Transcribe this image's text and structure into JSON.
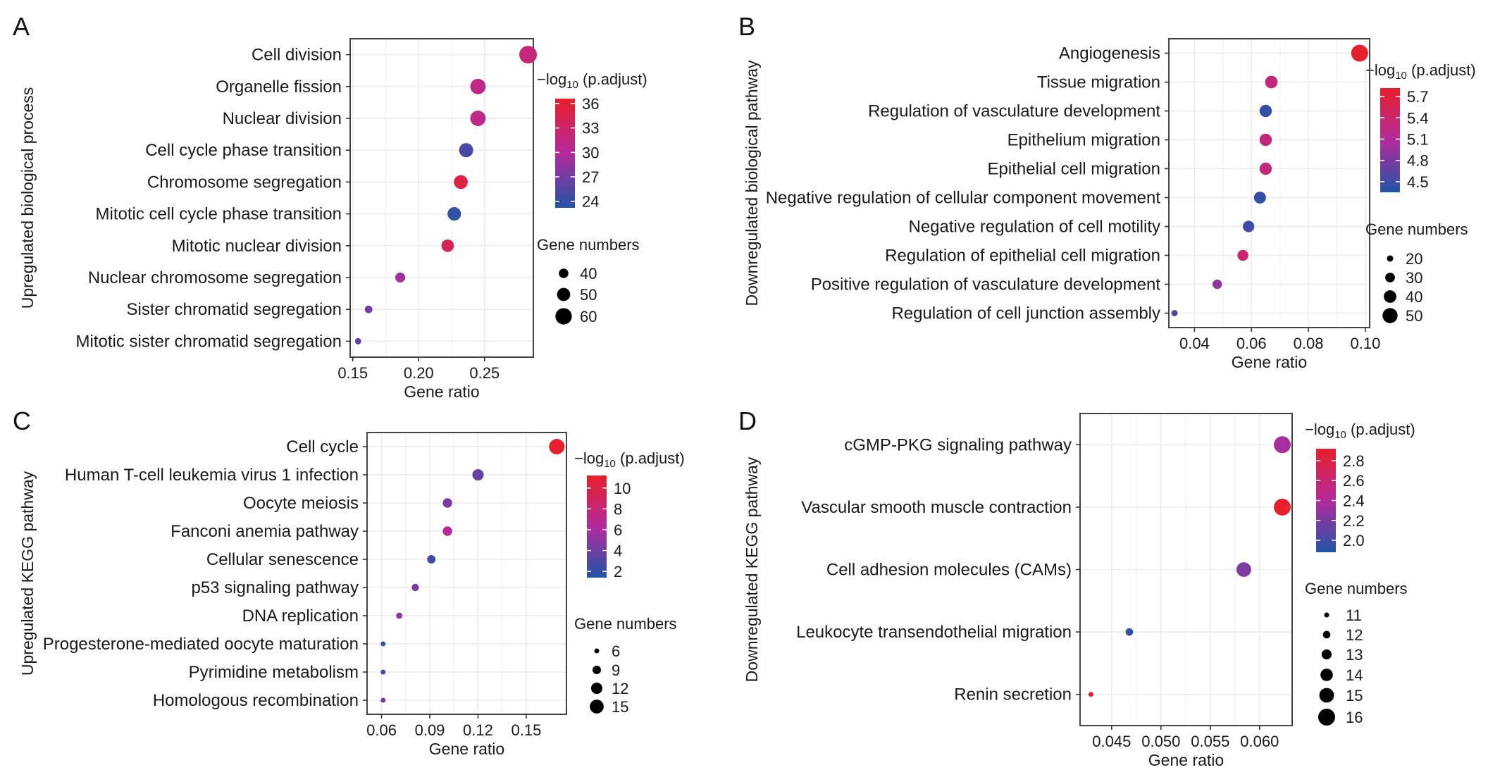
{
  "chart_data": [
    {
      "panel": "A",
      "type": "scatter",
      "ylabel": "Upregulated biological process",
      "xlabel": "Gene ratio",
      "xlim": [
        0.148,
        0.287
      ],
      "xticks": [
        0.15,
        0.2,
        0.25
      ],
      "xtick_labels": [
        "0.15",
        "0.20",
        "0.25"
      ],
      "categories": [
        "Cell division",
        "Organelle fission",
        "Nuclear division",
        "Cell cycle phase transition",
        "Chromosome segregation",
        "Mitotic cell cycle phase transition",
        "Mitotic nuclear division",
        "Nuclear chromosome segregation",
        "Sister chromatid segregation",
        "Mitotic sister chromatid segregation"
      ],
      "x": [
        0.283,
        0.245,
        0.245,
        0.236,
        0.232,
        0.227,
        0.222,
        0.186,
        0.162,
        0.154
      ],
      "color_value": [
        32,
        31,
        31,
        25,
        35,
        24,
        34,
        29,
        27,
        26
      ],
      "size_value": [
        64,
        57,
        57,
        53,
        52,
        51,
        48,
        41,
        35,
        32
      ],
      "color_legend": {
        "title_prefix": "−log",
        "title_sub": "10",
        "title_suffix": " (p.adjust)",
        "ticks": [
          24,
          27,
          30,
          33,
          36
        ],
        "tick_labels": [
          "24",
          "27",
          "30",
          "33",
          "36"
        ],
        "range": [
          23.2,
          36.6
        ]
      },
      "size_legend": {
        "title": "Gene numbers",
        "values": [
          40,
          50,
          60
        ],
        "labels": [
          "40",
          "50",
          "60"
        ]
      }
    },
    {
      "panel": "B",
      "type": "scatter",
      "ylabel": "Downregulated biological pathway",
      "xlabel": "Gene ratio",
      "xlim": [
        0.031,
        0.1015
      ],
      "xticks": [
        0.04,
        0.06,
        0.08,
        0.1
      ],
      "xtick_labels": [
        "0.04",
        "0.06",
        "0.08",
        "0.10"
      ],
      "categories": [
        "Angiogenesis",
        "Tissue migration",
        "Regulation of vasculature development",
        "Epithelium migration",
        "Epithelial cell migration",
        "Negative regulation of cellular component movement",
        "Negative regulation of cell motility",
        "Regulation of epithelial cell migration",
        "Positive regulation of vasculature development",
        "Regulation of cell junction assembly"
      ],
      "x": [
        0.098,
        0.067,
        0.065,
        0.065,
        0.065,
        0.063,
        0.059,
        0.057,
        0.048,
        0.033
      ],
      "color_value": [
        5.8,
        5.3,
        4.45,
        5.3,
        5.3,
        4.45,
        4.5,
        5.4,
        4.9,
        4.6
      ],
      "size_value": [
        58,
        40,
        39,
        39,
        39,
        38,
        36,
        34,
        29,
        20
      ],
      "color_legend": {
        "title_prefix": "−log",
        "title_sub": "10",
        "title_suffix": " (p.adjust)",
        "ticks": [
          4.5,
          4.8,
          5.1,
          5.4,
          5.7
        ],
        "tick_labels": [
          "4.5",
          "4.8",
          "5.1",
          "5.4",
          "5.7"
        ],
        "range": [
          4.35,
          5.82
        ]
      },
      "size_legend": {
        "title": "Gene numbers",
        "values": [
          20,
          30,
          40,
          50
        ],
        "labels": [
          "20",
          "30",
          "40",
          "50"
        ]
      }
    },
    {
      "panel": "C",
      "type": "scatter",
      "ylabel": "Upregulated KEGG pathway",
      "xlabel": "Gene ratio",
      "xlim": [
        0.051,
        0.175
      ],
      "xticks": [
        0.06,
        0.09,
        0.12,
        0.15
      ],
      "xtick_labels": [
        "0.06",
        "0.09",
        "0.12",
        "0.15"
      ],
      "categories": [
        "Cell cycle",
        "Human T-cell leukemia virus 1 infection",
        "Oocyte meiosis",
        "Fanconi anemia pathway",
        "Cellular senescence",
        "p53 signaling pathway",
        "DNA replication",
        "Progesterone-mediated oocyte maturation",
        "Pyrimidine metabolism",
        "Homologous recombination"
      ],
      "x": [
        0.169,
        0.12,
        0.101,
        0.101,
        0.091,
        0.081,
        0.071,
        0.061,
        0.061,
        0.061
      ],
      "color_value": [
        11,
        3.5,
        4.5,
        6.5,
        2.5,
        4.5,
        5,
        2,
        2.5,
        4
      ],
      "size_value": [
        17,
        12,
        10,
        10,
        9,
        8,
        7,
        6,
        6,
        6
      ],
      "color_legend": {
        "title_prefix": "−log",
        "title_sub": "10",
        "title_suffix": " (p.adjust)",
        "ticks": [
          2,
          4,
          6,
          8,
          10
        ],
        "tick_labels": [
          "2",
          "4",
          "6",
          "8",
          "10"
        ],
        "range": [
          1.4,
          11.2
        ]
      },
      "size_legend": {
        "title": "Gene numbers",
        "values": [
          6,
          9,
          12,
          15
        ],
        "labels": [
          "6",
          "9",
          "12",
          "15"
        ]
      }
    },
    {
      "panel": "D",
      "type": "scatter",
      "ylabel": "Downregulated KEGG pathway",
      "xlabel": "Gene ratio",
      "xlim": [
        0.0418,
        0.0633
      ],
      "xticks": [
        0.045,
        0.05,
        0.055,
        0.06
      ],
      "xtick_labels": [
        "0.045",
        "0.050",
        "0.055",
        "0.060"
      ],
      "categories": [
        "cGMP-PKG signaling pathway",
        "Vascular smooth muscle contraction",
        "Cell adhesion molecules (CAMs)",
        "Leukocyte transendothelial migration",
        "Renin secretion"
      ],
      "x": [
        0.0623,
        0.0623,
        0.0584,
        0.0468,
        0.0429
      ],
      "color_value": [
        2.35,
        2.9,
        2.2,
        1.95,
        2.85
      ],
      "size_value": [
        16,
        16,
        15,
        12,
        11
      ],
      "color_legend": {
        "title_prefix": "−log",
        "title_sub": "10",
        "title_suffix": " (p.adjust)",
        "ticks": [
          2.0,
          2.2,
          2.4,
          2.6,
          2.8
        ],
        "tick_labels": [
          "2.0",
          "2.2",
          "2.4",
          "2.6",
          "2.8"
        ],
        "range": [
          1.88,
          2.92
        ]
      },
      "size_legend": {
        "title": "Gene numbers",
        "values": [
          11,
          12,
          13,
          14,
          15,
          16
        ],
        "labels": [
          "11",
          "12",
          "13",
          "14",
          "15",
          "16"
        ]
      }
    }
  ],
  "colors": {
    "low": "#2155a8",
    "mid": "#b42a9c",
    "high": "#e8202a"
  }
}
